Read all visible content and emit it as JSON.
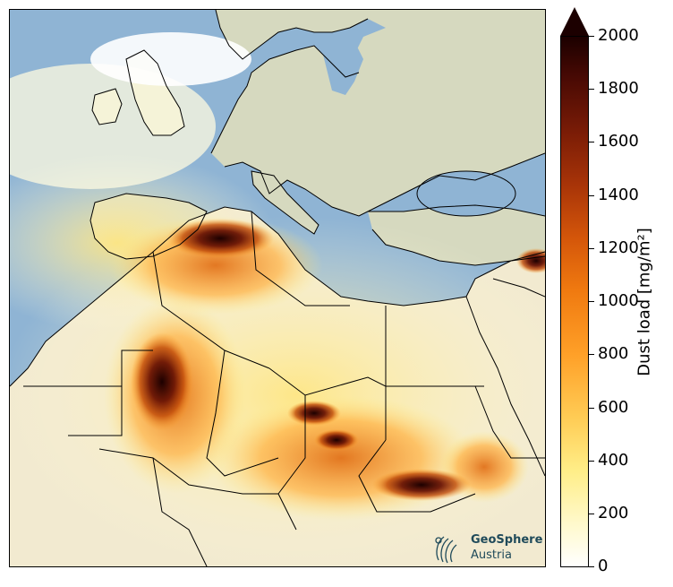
{
  "colorbar": {
    "title": "Dust load [mg/m²]",
    "ticks": [
      "0",
      "200",
      "400",
      "600",
      "800",
      "1000",
      "1200",
      "1400",
      "1600",
      "1800",
      "2000"
    ],
    "max": 2000,
    "extend": "max",
    "colors": [
      "#ffffff",
      "#fff9cc",
      "#ffee88",
      "#ffcc55",
      "#ffa028",
      "#f07a10",
      "#d4560a",
      "#a83408",
      "#7a1c06",
      "#4a0a04",
      "#1c0000"
    ]
  },
  "logo": {
    "name_line1": "GeoSphere",
    "name_line2": "Austria"
  },
  "colors": {
    "sea": "#8fb4d4",
    "land": "#d6d9bf",
    "border": "#000000"
  }
}
